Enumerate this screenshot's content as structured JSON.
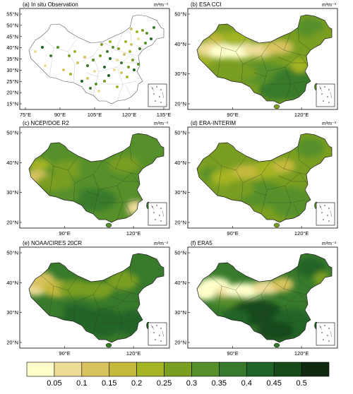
{
  "panels": [
    {
      "id": "a",
      "title": "(a) In situ Observation",
      "unit": "m³m⁻³",
      "style": "stations",
      "yticks": [
        "55°N",
        "50°N",
        "45°N",
        "40°N",
        "35°N",
        "30°N",
        "25°N",
        "20°N",
        "15°N"
      ],
      "xticks": [
        "75°E",
        "90°E",
        "105°E",
        "120°E",
        "135°E"
      ]
    },
    {
      "id": "b",
      "title": "(b) ESA CCI",
      "unit": "m³m⁻³",
      "style": "sat",
      "yticks": [
        "50°N",
        "40°N",
        "30°N",
        "20°N"
      ],
      "xticks": [
        "90°E",
        "120°E"
      ]
    },
    {
      "id": "c",
      "title": "(c) NCEP/DOE R2",
      "unit": "m³m⁻³",
      "style": "wet",
      "yticks": [
        "50°N",
        "40°N",
        "30°N",
        "20°N"
      ],
      "xticks": [
        "90°E",
        "120°E"
      ]
    },
    {
      "id": "d",
      "title": "(d) ERA-INTERIM",
      "unit": "m³m⁻³",
      "style": "moderate",
      "yticks": [
        "50°N",
        "40°N",
        "30°N",
        "20°N"
      ],
      "xticks": [
        "90°E",
        "120°E"
      ]
    },
    {
      "id": "e",
      "title": "(e) NOAA/CIRES 20CR",
      "unit": "m³m⁻³",
      "style": "wet2",
      "yticks": [
        "50°N",
        "40°N",
        "30°N",
        "20°N"
      ],
      "xticks": [
        "90°E",
        "120°E"
      ]
    },
    {
      "id": "f",
      "title": "(f) ERA5",
      "unit": "m³m⁻³",
      "style": "contrast",
      "yticks": [
        "50°N",
        "40°N",
        "30°N",
        "20°N"
      ],
      "xticks": [
        "90°E",
        "120°E"
      ]
    }
  ],
  "colorbar": {
    "labels": [
      "0.05",
      "0.1",
      "0.15",
      "0.2",
      "0.25",
      "0.3",
      "0.35",
      "0.4",
      "0.45",
      "0.5"
    ],
    "colors": [
      "#ffffcc",
      "#ecdc96",
      "#d8c35e",
      "#c4b93c",
      "#a4b424",
      "#7a9e21",
      "#56902a",
      "#387a2b",
      "#216427",
      "#164a1a",
      "#102a12"
    ]
  }
}
